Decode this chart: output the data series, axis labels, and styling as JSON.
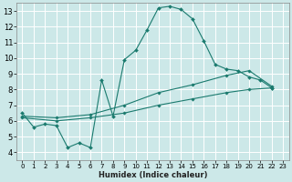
{
  "title": "",
  "xlabel": "Humidex (Indice chaleur)",
  "bg_color": "#cce8e8",
  "grid_color": "#ffffff",
  "line_color": "#1a7a6e",
  "xlim": [
    -0.5,
    23.5
  ],
  "ylim": [
    3.5,
    13.5
  ],
  "xticks": [
    0,
    1,
    2,
    3,
    4,
    5,
    6,
    7,
    8,
    9,
    10,
    11,
    12,
    13,
    14,
    15,
    16,
    17,
    18,
    19,
    20,
    21,
    22,
    23
  ],
  "yticks": [
    4,
    5,
    6,
    7,
    8,
    9,
    10,
    11,
    12,
    13
  ],
  "line1_x": [
    0,
    1,
    2,
    3,
    4,
    5,
    6,
    7,
    8,
    9,
    10,
    11,
    12,
    13,
    14,
    15,
    16,
    17,
    18,
    19,
    20,
    21,
    22
  ],
  "line1_y": [
    6.5,
    5.6,
    5.8,
    5.7,
    4.3,
    4.6,
    4.3,
    8.6,
    6.3,
    9.9,
    10.5,
    11.8,
    13.2,
    13.3,
    13.1,
    12.5,
    11.1,
    9.6,
    9.3,
    9.2,
    8.8,
    8.6,
    8.1
  ],
  "line2_x": [
    0,
    3,
    6,
    9,
    12,
    15,
    18,
    20,
    22
  ],
  "line2_y": [
    6.3,
    6.2,
    6.4,
    7.0,
    7.8,
    8.3,
    8.9,
    9.2,
    8.2
  ],
  "line3_x": [
    0,
    3,
    6,
    9,
    12,
    15,
    18,
    20,
    22
  ],
  "line3_y": [
    6.2,
    6.0,
    6.2,
    6.5,
    7.0,
    7.4,
    7.8,
    8.0,
    8.1
  ]
}
